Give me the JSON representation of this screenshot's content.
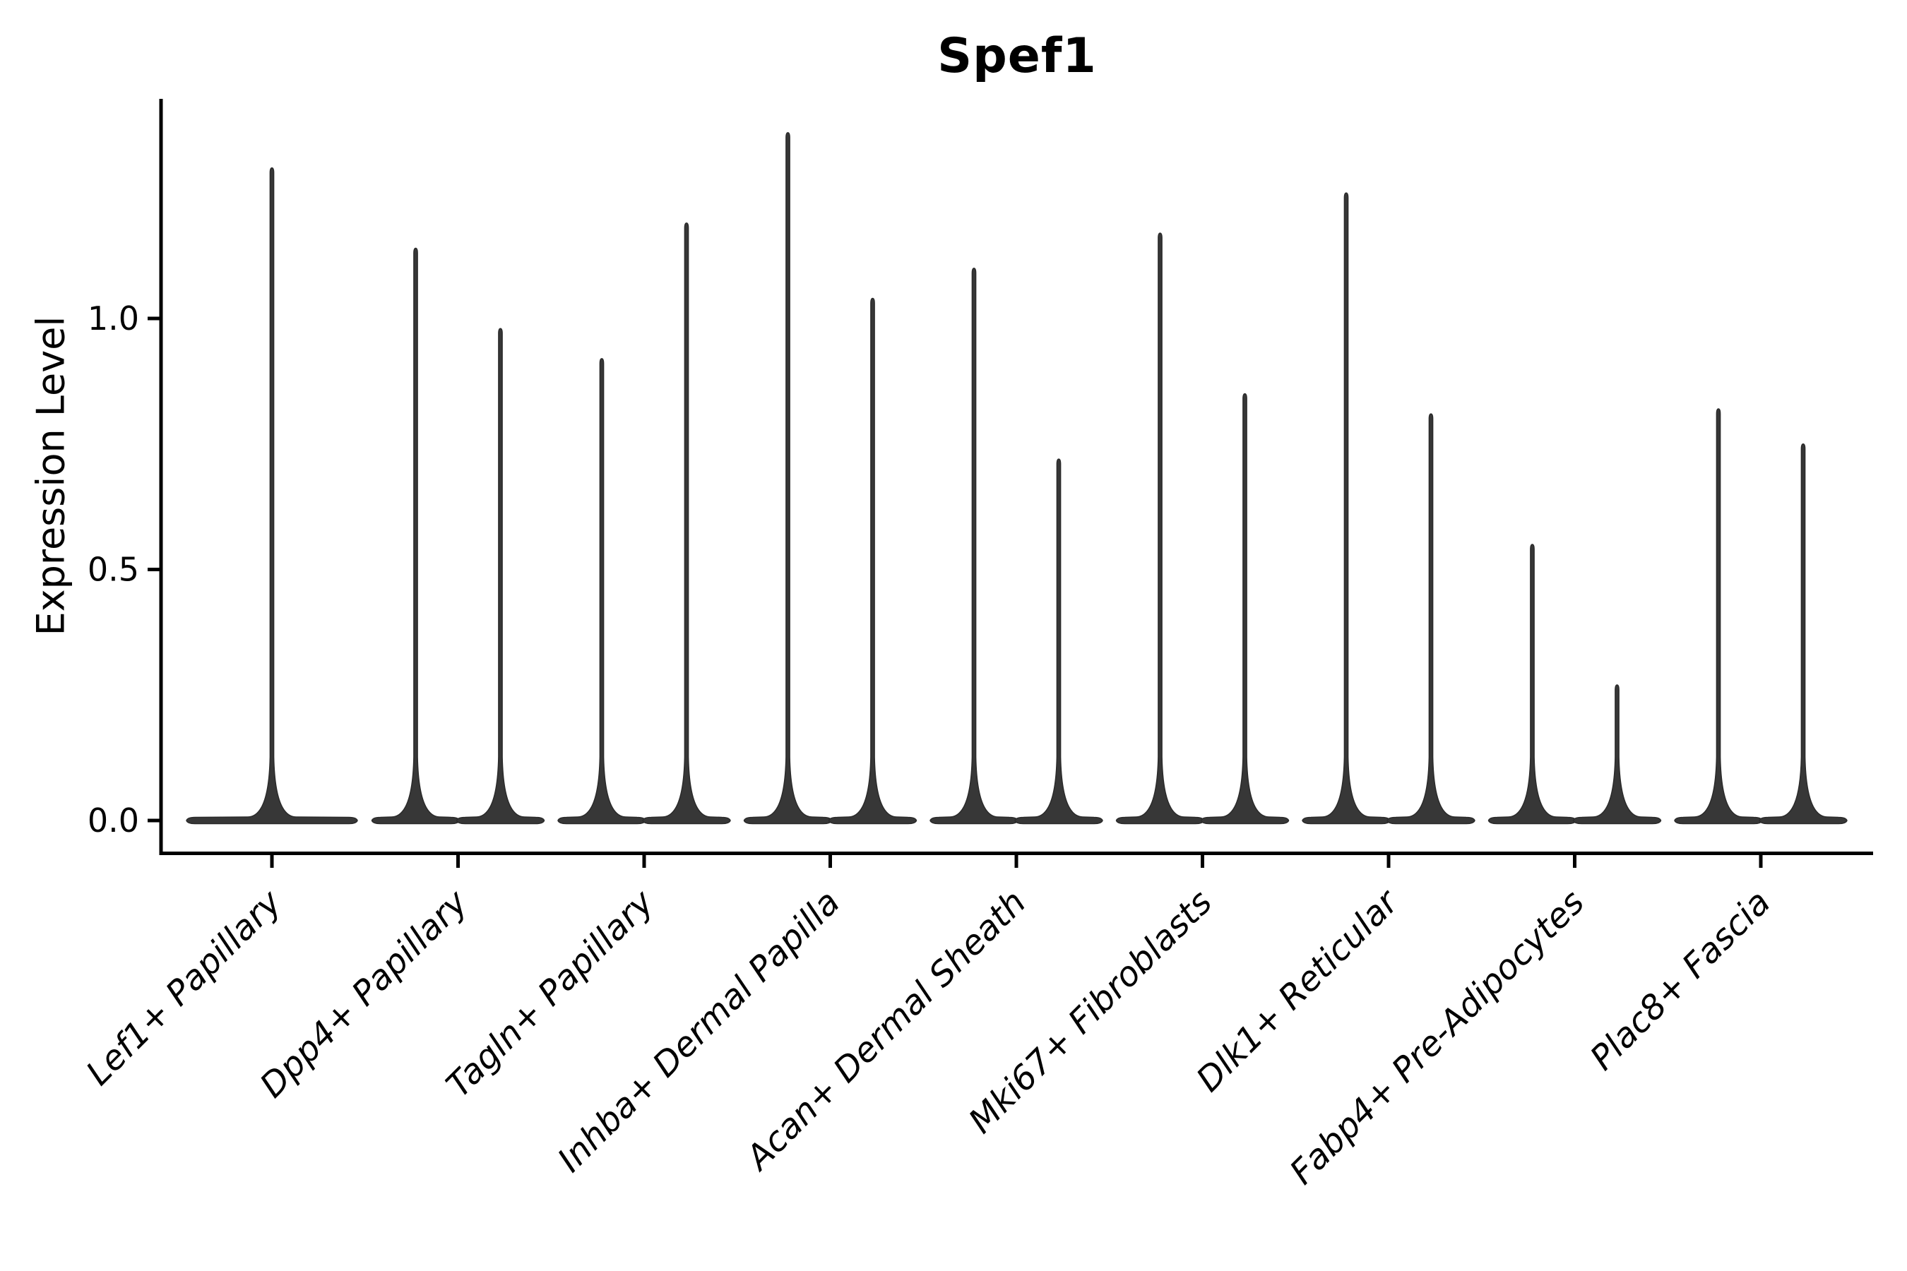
{
  "title": "Spef1",
  "chart_data": {
    "type": "violin",
    "title": "Spef1",
    "xlabel": "",
    "ylabel": "Expression Level",
    "categories": [
      "Lef1+ Papillary",
      "Dpp4+ Papillary",
      "Tagln+ Papillary",
      "Inhba+ Dermal Papilla",
      "Acan+ Dermal Sheath",
      "Mki67+ Fibroblasts",
      "Dlk1+ Reticular",
      "Fabp4+ Pre-Adipocytes",
      "Plac8+ Fascia"
    ],
    "groups": [
      {
        "category": "Lef1+ Papillary",
        "violins": [
          {
            "max": 1.3,
            "offset": 0,
            "half_width": 121
          }
        ]
      },
      {
        "category": "Dpp4+ Papillary",
        "violins": [
          {
            "max": 1.14,
            "offset": -60,
            "half_width": 62
          },
          {
            "max": 0.98,
            "offset": 60,
            "half_width": 62
          }
        ]
      },
      {
        "category": "Tagln+ Papillary",
        "violins": [
          {
            "max": 0.92,
            "offset": -60,
            "half_width": 62
          },
          {
            "max": 1.19,
            "offset": 60,
            "half_width": 62
          }
        ]
      },
      {
        "category": "Inhba+ Dermal Papilla",
        "violins": [
          {
            "max": 1.37,
            "offset": -60,
            "half_width": 62
          },
          {
            "max": 1.04,
            "offset": 60,
            "half_width": 62
          }
        ]
      },
      {
        "category": "Acan+ Dermal Sheath",
        "violins": [
          {
            "max": 1.1,
            "offset": -60,
            "half_width": 62
          },
          {
            "max": 0.72,
            "offset": 60,
            "half_width": 62
          }
        ]
      },
      {
        "category": "Mki67+ Fibroblasts",
        "violins": [
          {
            "max": 1.17,
            "offset": -60,
            "half_width": 62
          },
          {
            "max": 0.85,
            "offset": 60,
            "half_width": 62
          }
        ]
      },
      {
        "category": "Dlk1+ Reticular",
        "violins": [
          {
            "max": 1.25,
            "offset": -60,
            "half_width": 62
          },
          {
            "max": 0.81,
            "offset": 60,
            "half_width": 62
          }
        ]
      },
      {
        "category": "Fabp4+ Pre-Adipocytes",
        "violins": [
          {
            "max": 0.55,
            "offset": -60,
            "half_width": 62
          },
          {
            "max": 0.27,
            "offset": 60,
            "half_width": 62
          }
        ]
      },
      {
        "category": "Plac8+ Fascia",
        "violins": [
          {
            "max": 0.82,
            "offset": -60,
            "half_width": 62
          },
          {
            "max": 0.75,
            "offset": 60,
            "half_width": 62
          }
        ]
      }
    ],
    "ytick_labels": [
      "0.0",
      "0.5",
      "1.0"
    ],
    "ytick_values": [
      0,
      0.5,
      1.0
    ],
    "ylim": [
      -0.065,
      1.44
    ],
    "grid": false,
    "legend": "none",
    "x_tick_rotation_deg": 45,
    "x_tick_style": "italic",
    "violin_fill": "#373737",
    "violin_edge": "#2a2a2a",
    "axis_color": "#000000",
    "text_color": "#000000",
    "background": "#ffffff"
  }
}
